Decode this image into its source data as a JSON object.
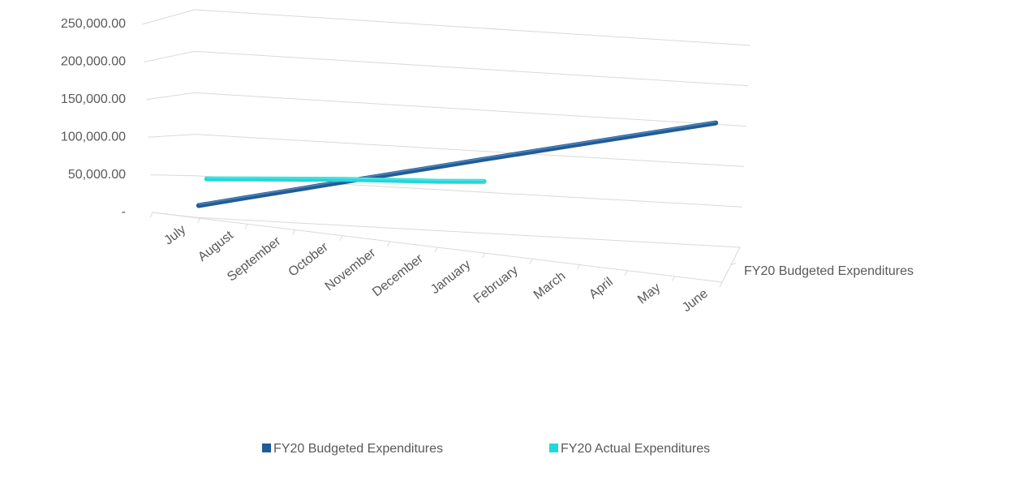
{
  "chart_data": {
    "type": "line3d",
    "categories": [
      "July",
      "August",
      "September",
      "October",
      "November",
      "December",
      "January",
      "February",
      "March",
      "April",
      "May",
      "June"
    ],
    "depth_categories": [
      "FY20 Budgeted Expenditures"
    ],
    "series": [
      {
        "name": "FY20 Budgeted Expenditures",
        "color": "#1f5c99",
        "values": [
          14583,
          29167,
          43750,
          58333,
          72917,
          87500,
          102083,
          116667,
          131250,
          145833,
          160417,
          175000
        ]
      },
      {
        "name": "FY20 Actual Expenditures",
        "color": "#22d8d8",
        "values": [
          48000,
          52000,
          56000,
          60000,
          63000,
          66000,
          70000,
          null,
          null,
          null,
          null,
          null
        ]
      }
    ],
    "ylim": [
      0,
      250000
    ],
    "yticks": [
      {
        "value": 0,
        "label": "-"
      },
      {
        "value": 50000,
        "label": "50,000.00"
      },
      {
        "value": 100000,
        "label": "100,000.00"
      },
      {
        "value": 150000,
        "label": "150,000.00"
      },
      {
        "value": 200000,
        "label": "200,000.00"
      },
      {
        "value": 250000,
        "label": "250,000.00"
      }
    ],
    "grid": true
  }
}
